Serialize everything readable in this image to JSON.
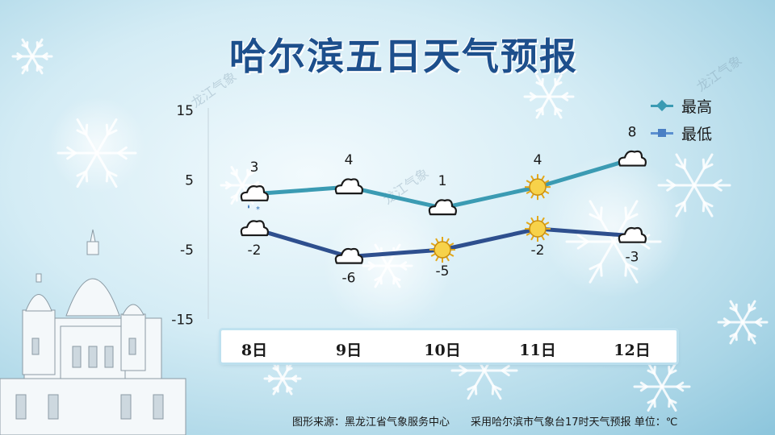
{
  "title": "哈尔滨五日天气预报",
  "chart_data": {
    "type": "line",
    "categories": [
      "8日",
      "9日",
      "10日",
      "11日",
      "12日"
    ],
    "series": [
      {
        "name": "最高",
        "values": [
          3,
          4,
          1,
          4,
          8
        ],
        "color": "#3b9bb3",
        "icons": [
          "cloud-snow-icon",
          "cloud-icon",
          "cloud-icon",
          "sun-icon",
          "cloud-icon"
        ]
      },
      {
        "name": "最低",
        "values": [
          -2,
          -6,
          -5,
          -2,
          -3
        ],
        "color": "#2e4f8e",
        "icons": [
          "cloud-icon",
          "cloud-icon",
          "sun-icon",
          "sun-icon",
          "cloud-icon"
        ]
      }
    ],
    "yticks": [
      "15",
      "5",
      "-5",
      "-15"
    ],
    "ylim": [
      -15,
      15
    ],
    "grid": false,
    "legend_position": "top-right"
  },
  "watermark": "龙江气象",
  "footer": {
    "source": "图形来源：黑龙江省气象服务中心",
    "note": "采用哈尔滨市气象台17时天气预报 单位：℃"
  },
  "colors": {
    "title": "#1d4f8c",
    "high": "#3b9bb3",
    "low": "#2e4f8e"
  }
}
